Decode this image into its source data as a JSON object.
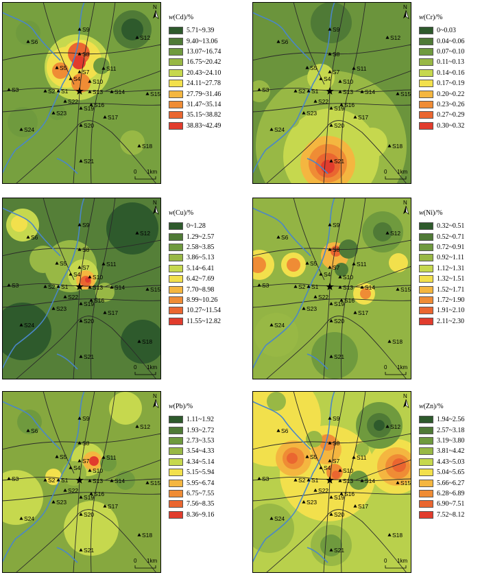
{
  "common": {
    "north_label": "N",
    "scale_label": "1km",
    "scale_zero": "0",
    "sites": [
      "S1",
      "S2",
      "S3",
      "S4",
      "S5",
      "S6",
      "S7",
      "S8",
      "S9",
      "S10",
      "S11",
      "S12",
      "S13",
      "S14",
      "S15",
      "S16",
      "S17",
      "S18",
      "S19",
      "S20",
      "S21",
      "S22",
      "S23",
      "S24"
    ]
  },
  "panels": [
    {
      "id": "cd",
      "element": "Cd",
      "unit": "/%",
      "classes": [
        "5.71~9.39",
        "9.40~13.06",
        "13.07~16.74",
        "16.75~20.42",
        "20.43~24.10",
        "24.11~27.78",
        "27.79~31.46",
        "31.47~35.14",
        "35.15~38.82",
        "38.83~42.49"
      ],
      "colors": [
        "#2e5a2c",
        "#4f7a36",
        "#6f9a3e",
        "#98b845",
        "#c6d84e",
        "#f2e04c",
        "#f4b640",
        "#ef8c35",
        "#ea6630",
        "#e13c2d"
      ],
      "base": "#77a03f",
      "blobs": [
        {
          "x": 110,
          "y": 95,
          "r": 48,
          "c": 4
        },
        {
          "x": 95,
          "y": 95,
          "r": 30,
          "c": 5
        },
        {
          "x": 115,
          "y": 85,
          "r": 30,
          "c": 5
        },
        {
          "x": 112,
          "y": 75,
          "r": 16,
          "c": 8
        },
        {
          "x": 115,
          "y": 118,
          "r": 14,
          "c": 7
        },
        {
          "x": 112,
          "y": 88,
          "r": 10,
          "c": 9
        },
        {
          "x": 85,
          "y": 100,
          "r": 12,
          "c": 7
        },
        {
          "x": 190,
          "y": 40,
          "r": 28,
          "c": 1
        },
        {
          "x": 190,
          "y": 40,
          "r": 16,
          "c": 0
        },
        {
          "x": 38,
          "y": 45,
          "r": 18,
          "c": 2
        },
        {
          "x": 30,
          "y": 175,
          "r": 22,
          "c": 2
        },
        {
          "x": 190,
          "y": 205,
          "r": 18,
          "c": 3
        },
        {
          "x": 145,
          "y": 93,
          "r": 12,
          "c": 2
        },
        {
          "x": 80,
          "y": 160,
          "r": 12,
          "c": 2
        }
      ]
    },
    {
      "id": "cr",
      "element": "Cr",
      "unit": "/%",
      "classes": [
        "0~0.03",
        "0.04~0.06",
        "0.07~0.10",
        "0.11~0.13",
        "0.14~0.16",
        "0.17~0.19",
        "0.20~0.22",
        "0.23~0.26",
        "0.27~0.29",
        "0.30~0.32"
      ],
      "colors": [
        "#2e5a2c",
        "#4f7a36",
        "#6f9a3e",
        "#98b845",
        "#c6d84e",
        "#f2e04c",
        "#f4b640",
        "#ef8c35",
        "#ea6630",
        "#e13c2d"
      ],
      "base": "#6b943c",
      "blobs": [
        {
          "x": 115,
          "y": 210,
          "r": 110,
          "c": 3
        },
        {
          "x": 115,
          "y": 225,
          "r": 70,
          "c": 4
        },
        {
          "x": 110,
          "y": 235,
          "r": 40,
          "c": 6
        },
        {
          "x": 110,
          "y": 235,
          "r": 28,
          "c": 7
        },
        {
          "x": 110,
          "y": 238,
          "r": 18,
          "c": 8
        },
        {
          "x": 110,
          "y": 240,
          "r": 10,
          "c": 9
        },
        {
          "x": 115,
          "y": 30,
          "r": 30,
          "c": 1
        },
        {
          "x": 10,
          "y": 130,
          "r": 16,
          "c": 3
        },
        {
          "x": 160,
          "y": 130,
          "r": 16,
          "c": 3
        },
        {
          "x": 100,
          "y": 110,
          "r": 20,
          "c": 4
        },
        {
          "x": 175,
          "y": 205,
          "r": 22,
          "c": 4
        },
        {
          "x": 55,
          "y": 170,
          "r": 14,
          "c": 3
        }
      ]
    },
    {
      "id": "cu",
      "element": "Cu",
      "unit": "/%",
      "classes": [
        "0~1.28",
        "1.29~2.57",
        "2.58~3.85",
        "3.86~5.13",
        "5.14~6.41",
        "6.42~7.69",
        "7.70~8.98",
        "8.99~10.26",
        "10.27~11.54",
        "11.55~12.82"
      ],
      "colors": [
        "#2e5a2c",
        "#4f7a36",
        "#6f9a3e",
        "#98b845",
        "#c6d84e",
        "#f2e04c",
        "#f4b640",
        "#ef8c35",
        "#ea6630",
        "#e13c2d"
      ],
      "base": "#557f38",
      "blobs": [
        {
          "x": 30,
          "y": 40,
          "r": 24,
          "c": 4
        },
        {
          "x": 25,
          "y": 38,
          "r": 12,
          "c": 5
        },
        {
          "x": 100,
          "y": 100,
          "r": 38,
          "c": 3
        },
        {
          "x": 118,
          "y": 112,
          "r": 22,
          "c": 4
        },
        {
          "x": 122,
          "y": 120,
          "r": 14,
          "c": 6
        },
        {
          "x": 122,
          "y": 122,
          "r": 8,
          "c": 8
        },
        {
          "x": 125,
          "y": 120,
          "r": 4,
          "c": 9
        },
        {
          "x": 190,
          "y": 45,
          "r": 38,
          "c": 0
        },
        {
          "x": 30,
          "y": 195,
          "r": 42,
          "c": 0
        },
        {
          "x": 205,
          "y": 210,
          "r": 32,
          "c": 0
        },
        {
          "x": 150,
          "y": 138,
          "r": 14,
          "c": 3
        },
        {
          "x": 60,
          "y": 90,
          "r": 20,
          "c": 3
        }
      ]
    },
    {
      "id": "ni",
      "element": "Ni",
      "unit": "/%",
      "classes": [
        "0.32~0.51",
        "0.52~0.71",
        "0.72~0.91",
        "0.92~1.11",
        "1.12~1.31",
        "1.32~1.51",
        "1.52~1.71",
        "1.72~1.90",
        "1.91~2.10",
        "2.11~2.30"
      ],
      "colors": [
        "#2e5a2c",
        "#4f7a36",
        "#6f9a3e",
        "#98b845",
        "#c6d84e",
        "#f2e04c",
        "#f4b640",
        "#ef8c35",
        "#ea6630",
        "#e13c2d"
      ],
      "base": "#93b444",
      "blobs": [
        {
          "x": 10,
          "y": 98,
          "r": 22,
          "c": 5
        },
        {
          "x": 8,
          "y": 98,
          "r": 12,
          "c": 7
        },
        {
          "x": 60,
          "y": 98,
          "r": 18,
          "c": 5
        },
        {
          "x": 60,
          "y": 98,
          "r": 10,
          "c": 7
        },
        {
          "x": 120,
          "y": 85,
          "r": 20,
          "c": 6
        },
        {
          "x": 122,
          "y": 78,
          "r": 8,
          "c": 8
        },
        {
          "x": 130,
          "y": 105,
          "r": 10,
          "c": 1
        },
        {
          "x": 163,
          "y": 140,
          "r": 16,
          "c": 5
        },
        {
          "x": 165,
          "y": 140,
          "r": 8,
          "c": 7
        },
        {
          "x": 190,
          "y": 50,
          "r": 30,
          "c": 2
        },
        {
          "x": 190,
          "y": 50,
          "r": 14,
          "c": 1
        },
        {
          "x": 120,
          "y": 230,
          "r": 34,
          "c": 2
        },
        {
          "x": 35,
          "y": 200,
          "r": 32,
          "c": 3
        },
        {
          "x": 213,
          "y": 95,
          "r": 14,
          "c": 5
        },
        {
          "x": 140,
          "y": 75,
          "r": 14,
          "c": 1
        }
      ]
    },
    {
      "id": "pb",
      "element": "Pb",
      "unit": "/%",
      "classes": [
        "1.11~1.92",
        "1.93~2.72",
        "2.73~3.53",
        "3.54~4.33",
        "4.34~5.14",
        "5.15~5.94",
        "5.95~6.74",
        "6.75~7.55",
        "7.56~8.35",
        "8.36~9.16"
      ],
      "colors": [
        "#2e5a2c",
        "#4f7a36",
        "#6f9a3e",
        "#98b845",
        "#c6d84e",
        "#f2e04c",
        "#f4b640",
        "#ef8c35",
        "#ea6630",
        "#e13c2d"
      ],
      "base": "#86a83f",
      "blobs": [
        {
          "x": 125,
          "y": 100,
          "r": 24,
          "c": 4
        },
        {
          "x": 132,
          "y": 102,
          "r": 14,
          "c": 6
        },
        {
          "x": 134,
          "y": 102,
          "r": 7,
          "c": 9
        },
        {
          "x": 75,
          "y": 125,
          "r": 12,
          "c": 5
        },
        {
          "x": 40,
          "y": 45,
          "r": 18,
          "c": 2
        },
        {
          "x": 155,
          "y": 105,
          "r": 12,
          "c": 2
        },
        {
          "x": 180,
          "y": 25,
          "r": 24,
          "c": 4
        },
        {
          "x": 20,
          "y": 155,
          "r": 40,
          "c": 4
        },
        {
          "x": 130,
          "y": 200,
          "r": 40,
          "c": 4
        },
        {
          "x": 180,
          "y": 130,
          "r": 14,
          "c": 2
        },
        {
          "x": 105,
          "y": 120,
          "r": 18,
          "c": 3
        }
      ]
    },
    {
      "id": "zn",
      "element": "Zn",
      "unit": "/%",
      "classes": [
        "1.94~2.56",
        "2.57~3.18",
        "3.19~3.80",
        "3.81~4.42",
        "4.43~5.03",
        "5.04~5.65",
        "5.66~6.27",
        "6.28~6.89",
        "6.90~7.51",
        "7.52~8.12"
      ],
      "colors": [
        "#2e5a2c",
        "#4f7a36",
        "#6f9a3e",
        "#98b845",
        "#c6d84e",
        "#f2e04c",
        "#f4b640",
        "#ef8c35",
        "#ea6630",
        "#e13c2d"
      ],
      "base": "#b9d04c",
      "blobs": [
        {
          "x": 30,
          "y": 40,
          "r": 70,
          "c": 5
        },
        {
          "x": 110,
          "y": 120,
          "r": 70,
          "c": 5
        },
        {
          "x": 210,
          "y": 110,
          "r": 40,
          "c": 5
        },
        {
          "x": 210,
          "y": 110,
          "r": 28,
          "c": 6
        },
        {
          "x": 212,
          "y": 110,
          "r": 18,
          "c": 7
        },
        {
          "x": 214,
          "y": 108,
          "r": 10,
          "c": 8
        },
        {
          "x": 60,
          "y": 98,
          "r": 26,
          "c": 6
        },
        {
          "x": 60,
          "y": 98,
          "r": 16,
          "c": 7
        },
        {
          "x": 58,
          "y": 98,
          "r": 8,
          "c": 8
        },
        {
          "x": 108,
          "y": 85,
          "r": 22,
          "c": 6
        },
        {
          "x": 110,
          "y": 75,
          "r": 12,
          "c": 7
        },
        {
          "x": 120,
          "y": 118,
          "r": 12,
          "c": 7
        },
        {
          "x": 122,
          "y": 122,
          "r": 6,
          "c": 8
        },
        {
          "x": 185,
          "y": 50,
          "r": 34,
          "c": 2
        },
        {
          "x": 185,
          "y": 50,
          "r": 18,
          "c": 1
        },
        {
          "x": 185,
          "y": 50,
          "r": 8,
          "c": 0
        },
        {
          "x": 35,
          "y": 15,
          "r": 14,
          "c": 3
        },
        {
          "x": 155,
          "y": 130,
          "r": 14,
          "c": 2
        },
        {
          "x": 115,
          "y": 225,
          "r": 30,
          "c": 3
        },
        {
          "x": 115,
          "y": 225,
          "r": 16,
          "c": 2
        },
        {
          "x": 90,
          "y": 70,
          "r": 12,
          "c": 3
        },
        {
          "x": 160,
          "y": 85,
          "r": 10,
          "c": 3
        },
        {
          "x": 25,
          "y": 200,
          "r": 36,
          "c": 3
        }
      ]
    }
  ]
}
